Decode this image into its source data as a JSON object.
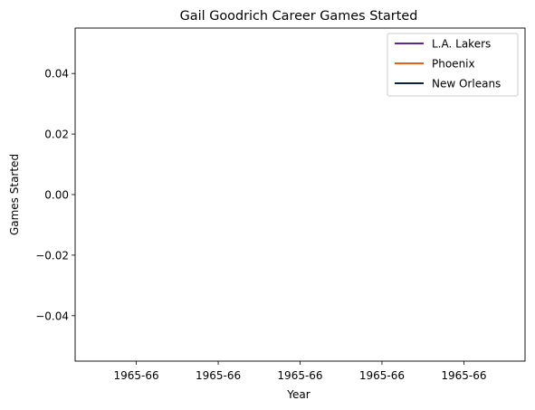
{
  "chart_data": {
    "type": "line",
    "title": "Gail Goodrich Career Games Started",
    "xlabel": "Year",
    "ylabel": "Games Started",
    "x_ticks": [
      "1965-66",
      "1965-66",
      "1965-66",
      "1965-66",
      "1965-66"
    ],
    "y_ticks": [
      "0.04",
      "0.02",
      "0.00",
      "−0.02",
      "−0.04"
    ],
    "ylim": [
      -0.055,
      0.055
    ],
    "grid": false,
    "legend_position": "top-right",
    "series": [
      {
        "name": "L.A. Lakers",
        "color": "#5b2a86",
        "x": [],
        "y": []
      },
      {
        "name": "Phoenix",
        "color": "#e56020",
        "x": [],
        "y": []
      },
      {
        "name": "New Orleans",
        "color": "#0c2340",
        "x": [],
        "y": []
      }
    ]
  }
}
